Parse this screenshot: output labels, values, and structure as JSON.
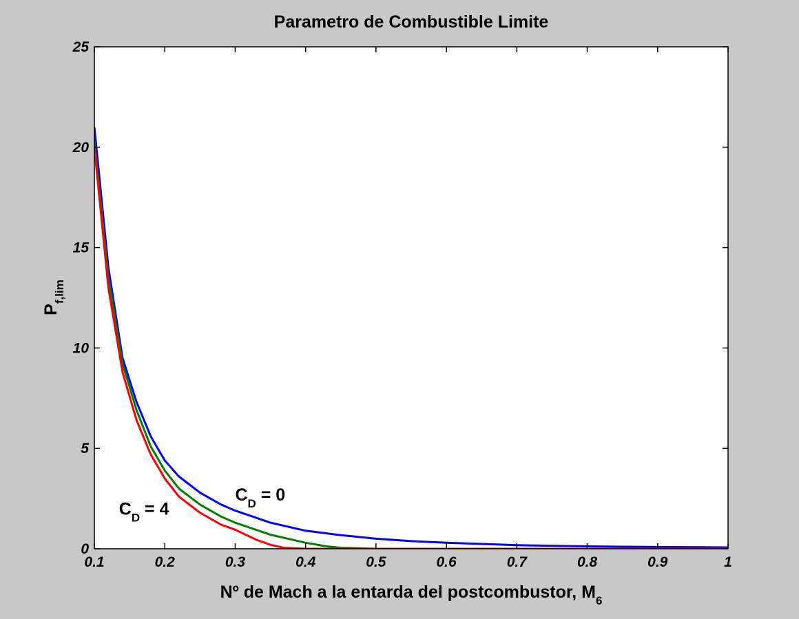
{
  "chart_data": {
    "type": "line",
    "title": "Parametro de Combustible Limite",
    "xlabel": {
      "main": "Nº de Mach a la entarda del postcombustor, M",
      "sub": "6"
    },
    "ylabel": {
      "main": "P",
      "sub": "f,lim"
    },
    "xlim": [
      0.1,
      1
    ],
    "ylim": [
      0,
      25
    ],
    "xticks": [
      0.1,
      0.2,
      0.3,
      0.4,
      0.5,
      0.6,
      0.7,
      0.8,
      0.9,
      1
    ],
    "xtick_labels": [
      "0.1",
      "0.2",
      "0.3",
      "0.4",
      "0.5",
      "0.6",
      "0.7",
      "0.8",
      "0.9",
      "1"
    ],
    "yticks": [
      0,
      5,
      10,
      15,
      20,
      25
    ],
    "ytick_labels": [
      "0",
      "5",
      "10",
      "15",
      "20",
      "25"
    ],
    "grid": false,
    "legend": "none",
    "background": "#c8c8c8",
    "plot_background": "#ffffff",
    "series": [
      {
        "color": "#0000ff",
        "x": [
          0.1,
          0.12,
          0.14,
          0.16,
          0.18,
          0.2,
          0.22,
          0.25,
          0.28,
          0.3,
          0.35,
          0.4,
          0.45,
          0.5,
          0.55,
          0.6,
          0.7,
          0.8,
          0.9,
          1.0
        ],
        "y": [
          21.0,
          14.0,
          9.5,
          7.3,
          5.6,
          4.4,
          3.6,
          2.8,
          2.2,
          1.9,
          1.3,
          0.9,
          0.68,
          0.5,
          0.38,
          0.3,
          0.18,
          0.12,
          0.09,
          0.07
        ]
      },
      {
        "color": "#008000",
        "x": [
          0.1,
          0.12,
          0.14,
          0.16,
          0.18,
          0.2,
          0.22,
          0.25,
          0.28,
          0.3,
          0.35,
          0.4,
          0.43,
          0.45,
          0.5,
          0.6,
          0.7,
          0.8,
          0.9,
          1.0
        ],
        "y": [
          20.3,
          13.5,
          9.2,
          6.9,
          5.1,
          3.9,
          3.0,
          2.2,
          1.6,
          1.3,
          0.7,
          0.3,
          0.12,
          0.05,
          0,
          0,
          0,
          0,
          0,
          0
        ]
      },
      {
        "color": "#ff0000",
        "x": [
          0.1,
          0.12,
          0.14,
          0.16,
          0.18,
          0.2,
          0.22,
          0.25,
          0.28,
          0.3,
          0.33,
          0.35,
          0.37,
          0.4,
          0.5,
          0.6,
          0.7,
          0.8,
          0.9,
          1.0
        ],
        "y": [
          20.0,
          13.0,
          8.8,
          6.4,
          4.7,
          3.5,
          2.6,
          1.8,
          1.2,
          0.95,
          0.45,
          0.2,
          0.04,
          0,
          0,
          0,
          0,
          0,
          0,
          0
        ]
      }
    ],
    "annotations": [
      {
        "main": "C",
        "sub": "D",
        "suffix": " = 0",
        "x": 0.3,
        "y": 2.4
      },
      {
        "main": "C",
        "sub": "D",
        "suffix": " = 4",
        "x": 0.135,
        "y": 1.7
      }
    ]
  }
}
